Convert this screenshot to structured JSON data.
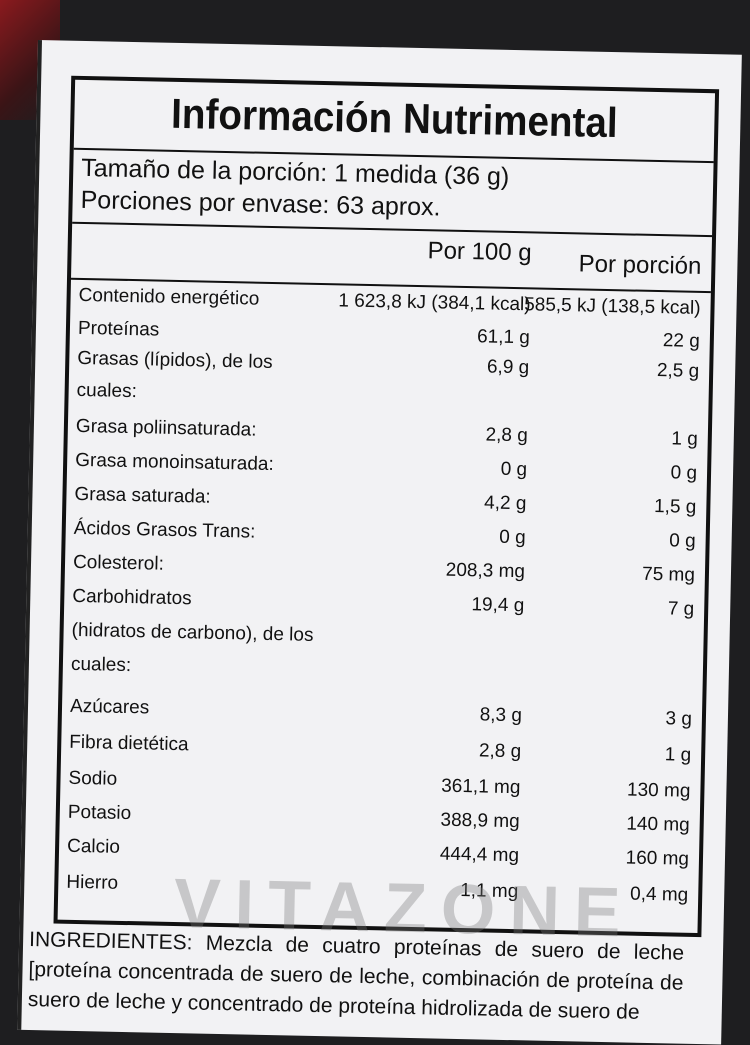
{
  "title": "Información Nutrimental",
  "serving_size": "Tamaño de la porción: 1 medida (36 g)",
  "servings_per_container": "Porciones por envase: 63 aprox.",
  "columns": {
    "per100": "Por 100 g",
    "perServing": "Por porción"
  },
  "rows": [
    {
      "name": "Contenido energético",
      "per100": "1 623,8 kJ (384,1 kcal)",
      "perServing": "585,5 kJ (138,5 kcal)"
    },
    {
      "name": "Proteínas",
      "per100": "61,1 g",
      "perServing": "22 g"
    },
    {
      "name": "Grasas (lípidos), de los",
      "per100": "6,9 g",
      "perServing": "2,5 g"
    },
    {
      "name": "cuales:",
      "per100": "",
      "perServing": ""
    },
    {
      "name": "Grasa poliinsaturada:",
      "per100": "2,8 g",
      "perServing": "1 g"
    },
    {
      "name": "Grasa monoinsaturada:",
      "per100": "0 g",
      "perServing": "0 g"
    },
    {
      "name": "Grasa saturada:",
      "per100": "4,2 g",
      "perServing": "1,5 g"
    },
    {
      "name": "Ácidos Grasos Trans:",
      "per100": "0 g",
      "perServing": "0 g"
    },
    {
      "name": "Colesterol:",
      "per100": "208,3 mg",
      "perServing": "75 mg"
    },
    {
      "name": "Carbohidratos",
      "per100": "19,4 g",
      "perServing": "7 g"
    },
    {
      "name": "(hidratos de carbono), de los",
      "per100": "",
      "perServing": ""
    },
    {
      "name": "cuales:",
      "per100": "",
      "perServing": ""
    },
    {
      "name": "Azúcares",
      "per100": "8,3 g",
      "perServing": "3 g"
    },
    {
      "name": "Fibra dietética",
      "per100": "2,8 g",
      "perServing": "1 g"
    },
    {
      "name": "Sodio",
      "per100": "361,1 mg",
      "perServing": "130 mg"
    },
    {
      "name": "Potasio",
      "per100": "388,9 mg",
      "perServing": "140 mg"
    },
    {
      "name": "Calcio",
      "per100": "444,4 mg",
      "perServing": "160 mg"
    },
    {
      "name": "Hierro",
      "per100": "1,1 mg",
      "perServing": "0,4 mg"
    }
  ],
  "ingredients": "INGREDIENTES: Mezcla de cuatro proteínas de suero de leche [proteína concentrada de suero de leche, combinación de proteína de suero de leche y concentrado de proteína hidrolizada de suero de",
  "watermark": "VITAZONE"
}
